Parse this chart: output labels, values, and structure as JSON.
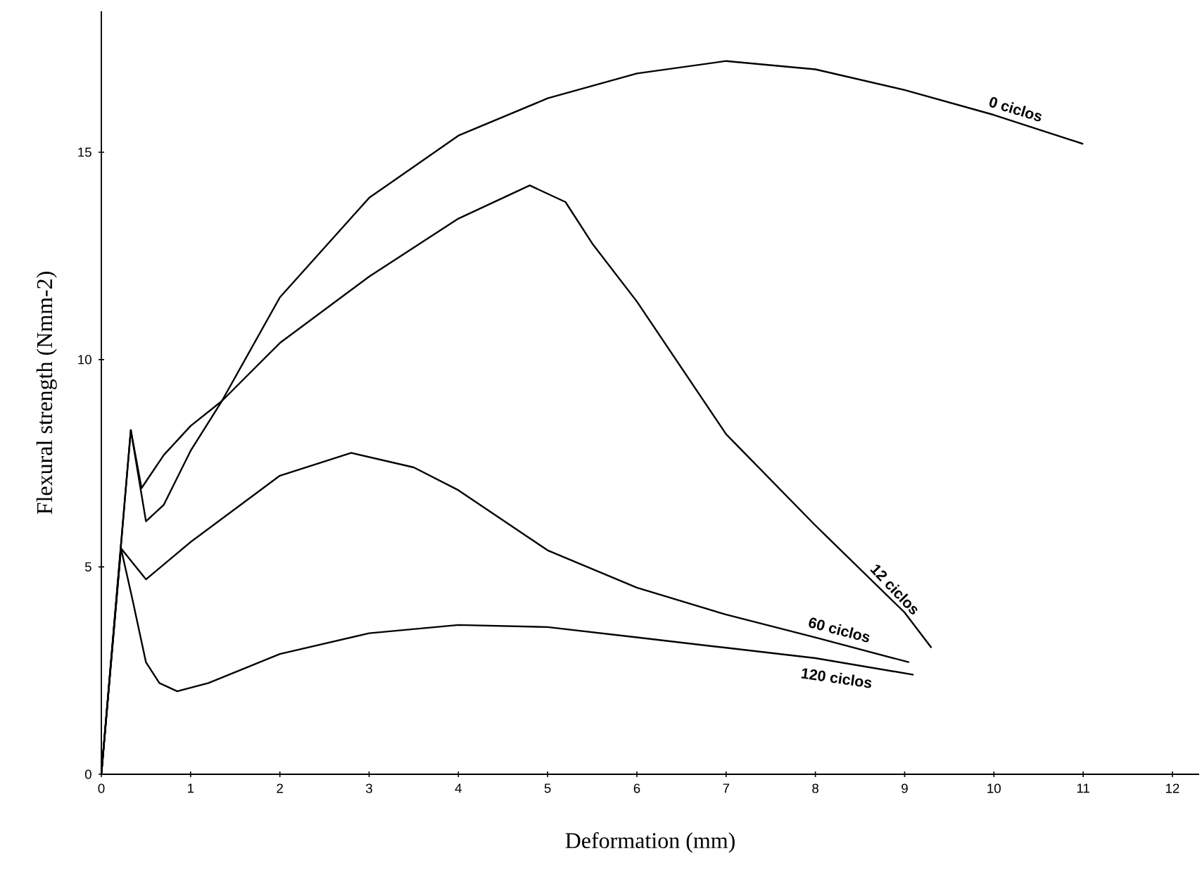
{
  "chart_data": {
    "type": "line",
    "xlabel": "Deformation (mm)",
    "ylabel": "Flexural strength (Nmm-2)",
    "xlim": [
      0,
      12.3
    ],
    "ylim": [
      0,
      18.4
    ],
    "xticks": [
      0,
      1,
      2,
      3,
      4,
      5,
      6,
      7,
      8,
      9,
      10,
      11,
      12
    ],
    "yticks": [
      0,
      5,
      10,
      15
    ],
    "series": [
      {
        "name": "0 ciclos",
        "color": "#000000",
        "x": [
          0,
          0.33,
          0.5,
          0.7,
          1,
          1.35,
          2,
          3,
          4,
          5,
          6,
          7,
          8,
          9,
          10,
          11
        ],
        "values": [
          0,
          8.3,
          6.1,
          6.5,
          7.8,
          9.0,
          11.5,
          13.9,
          15.4,
          16.3,
          16.9,
          17.2,
          17.0,
          16.5,
          15.9,
          15.2
        ]
      },
      {
        "name": "12 ciclos",
        "color": "#000000",
        "x": [
          0,
          0.33,
          0.45,
          0.7,
          1,
          1.35,
          2,
          3,
          4,
          4.8,
          5.2,
          5.5,
          6,
          7,
          8,
          9,
          9.3
        ],
        "values": [
          0,
          8.3,
          6.9,
          7.7,
          8.4,
          9.0,
          10.4,
          12.0,
          13.4,
          14.2,
          13.8,
          12.8,
          11.4,
          8.2,
          6.0,
          3.9,
          3.05
        ]
      },
      {
        "name": "60 ciclos",
        "color": "#000000",
        "x": [
          0,
          0.22,
          0.35,
          0.5,
          1,
          2,
          2.8,
          3.5,
          4,
          5,
          6,
          7,
          8,
          9.05
        ],
        "values": [
          0,
          5.45,
          5.1,
          4.7,
          5.6,
          7.2,
          7.75,
          7.4,
          6.85,
          5.4,
          4.5,
          3.85,
          3.3,
          2.7
        ]
      },
      {
        "name": "120 ciclos",
        "color": "#000000",
        "x": [
          0,
          0.22,
          0.35,
          0.5,
          0.65,
          0.85,
          1.2,
          2,
          3,
          4,
          5,
          6,
          7,
          8,
          9.1
        ],
        "values": [
          0,
          5.45,
          4.2,
          2.7,
          2.2,
          2.0,
          2.2,
          2.9,
          3.4,
          3.6,
          3.55,
          3.3,
          3.05,
          2.8,
          2.4
        ]
      }
    ]
  }
}
